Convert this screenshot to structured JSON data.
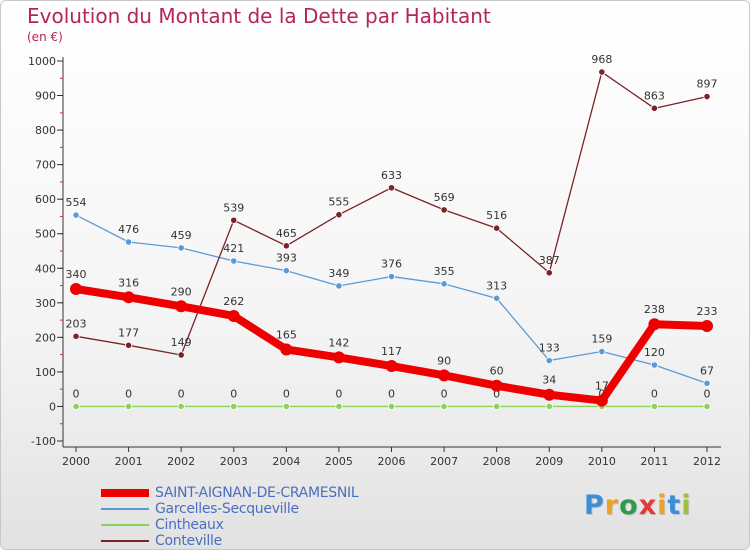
{
  "title": "Evolution du Montant de la Dette par Habitant",
  "subtitle": "(en €)",
  "logo": {
    "text": "Proxiti",
    "colors": [
      "#3a8fd6",
      "#f0a020",
      "#2f9a4a",
      "#e23a3a",
      "#f0a020",
      "#3a8fd6",
      "#9ac23c"
    ]
  },
  "chart_data": {
    "type": "line",
    "x": [
      "2000",
      "2001",
      "2002",
      "2003",
      "2004",
      "2005",
      "2006",
      "2007",
      "2008",
      "2009",
      "2010",
      "2011",
      "2012"
    ],
    "ylim": [
      -100,
      1000
    ],
    "yticks": [
      -100,
      0,
      100,
      200,
      300,
      400,
      500,
      600,
      700,
      800,
      900,
      1000
    ],
    "grid": false,
    "legend_position": "bottom-left",
    "series": [
      {
        "name": "SAINT-AIGNAN-DE-CRAMESNIL",
        "color": "#ee0000",
        "emphasis": true,
        "values": [
          340,
          316,
          290,
          262,
          165,
          142,
          117,
          90,
          60,
          34,
          17,
          238,
          233
        ]
      },
      {
        "name": "Garcelles-Secqueville",
        "color": "#5b9bd5",
        "emphasis": false,
        "values": [
          554,
          476,
          459,
          421,
          393,
          349,
          376,
          355,
          313,
          133,
          159,
          120,
          67
        ]
      },
      {
        "name": "Cintheaux",
        "color": "#8cd15a",
        "emphasis": false,
        "values": [
          0,
          0,
          0,
          0,
          0,
          0,
          0,
          0,
          0,
          0,
          0,
          0,
          0
        ]
      },
      {
        "name": "Conteville",
        "color": "#7a2328",
        "emphasis": false,
        "values": [
          203,
          177,
          149,
          539,
          465,
          555,
          633,
          569,
          516,
          387,
          968,
          863,
          897
        ]
      }
    ]
  }
}
